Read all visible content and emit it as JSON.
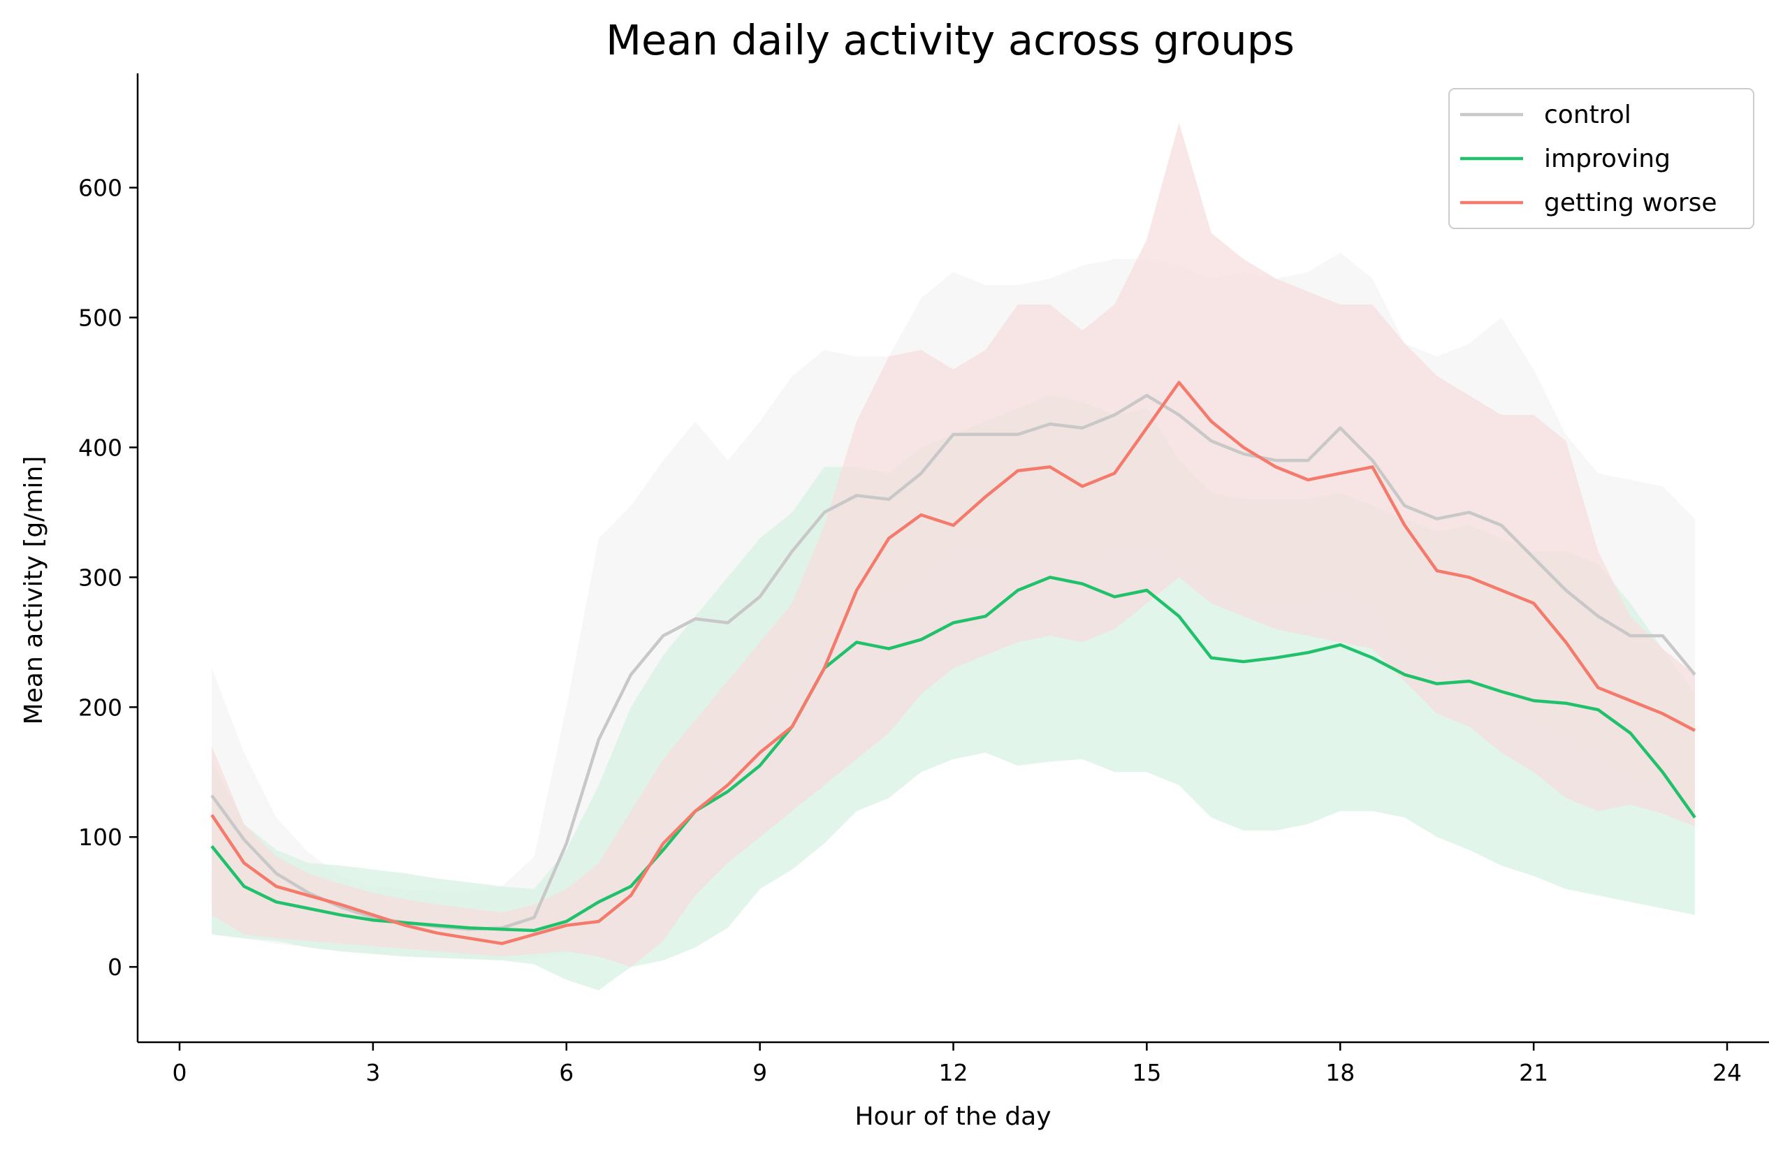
{
  "chart_data": {
    "type": "line",
    "title": "Mean daily activity across groups",
    "xlabel": "Hour of the day",
    "ylabel": "Mean activity [g/min]",
    "xlim": [
      -0.65,
      24.65
    ],
    "ylim": [
      -58,
      688
    ],
    "xticks": [
      0,
      3,
      6,
      9,
      12,
      15,
      18,
      21,
      24
    ],
    "yticks": [
      0,
      100,
      200,
      300,
      400,
      500,
      600
    ],
    "grid": false,
    "legend_position": "top-right",
    "x": [
      0.5,
      1,
      1.5,
      2,
      2.5,
      3,
      3.5,
      4,
      4.5,
      5,
      5.5,
      6,
      6.5,
      7,
      7.5,
      8,
      8.5,
      9,
      9.5,
      10,
      10.5,
      11,
      11.5,
      12,
      12.5,
      13,
      13.5,
      14,
      14.5,
      15,
      15.5,
      16,
      16.5,
      17,
      17.5,
      18,
      18.5,
      19,
      19.5,
      20,
      20.5,
      21,
      21.5,
      22,
      22.5,
      23,
      23.5
    ],
    "series": [
      {
        "name": "control",
        "color": "#c8c8c8",
        "band_color": "#f4f4f4",
        "mean": [
          132,
          98,
          72,
          57,
          46,
          38,
          34,
          31,
          29,
          30,
          38,
          95,
          175,
          225,
          255,
          268,
          265,
          285,
          320,
          350,
          363,
          360,
          380,
          410,
          410,
          410,
          418,
          415,
          425,
          440,
          425,
          405,
          395,
          390,
          390,
          415,
          390,
          355,
          345,
          350,
          340,
          315,
          290,
          270,
          255,
          255,
          225
        ],
        "upper": [
          230,
          165,
          115,
          88,
          70,
          62,
          60,
          58,
          58,
          62,
          85,
          200,
          330,
          355,
          390,
          420,
          390,
          420,
          455,
          475,
          470,
          470,
          515,
          535,
          525,
          525,
          530,
          540,
          545,
          545,
          540,
          530,
          535,
          530,
          535,
          550,
          530,
          480,
          470,
          480,
          500,
          460,
          410,
          380,
          375,
          370,
          345
        ],
        "lower": [
          25,
          22,
          18,
          15,
          12,
          10,
          8,
          7,
          6,
          5,
          6,
          10,
          25,
          70,
          110,
          140,
          160,
          180,
          220,
          260,
          275,
          285,
          300,
          320,
          320,
          310,
          315,
          315,
          320,
          325,
          310,
          290,
          280,
          275,
          280,
          290,
          275,
          245,
          230,
          225,
          205,
          190,
          175,
          165,
          145,
          140,
          120
        ]
      },
      {
        "name": "improving",
        "color": "#21c16b",
        "band_color": "#d6f1e3",
        "mean": [
          93,
          62,
          50,
          45,
          40,
          36,
          34,
          32,
          30,
          29,
          28,
          35,
          50,
          62,
          90,
          120,
          135,
          155,
          185,
          230,
          250,
          245,
          252,
          265,
          270,
          290,
          300,
          295,
          285,
          290,
          270,
          238,
          235,
          238,
          242,
          248,
          238,
          225,
          218,
          220,
          212,
          205,
          203,
          198,
          180,
          150,
          115
        ],
        "upper": [
          160,
          110,
          90,
          80,
          78,
          75,
          72,
          68,
          65,
          62,
          60,
          90,
          140,
          200,
          240,
          270,
          300,
          330,
          350,
          385,
          385,
          380,
          400,
          410,
          420,
          430,
          440,
          435,
          425,
          430,
          390,
          365,
          360,
          360,
          360,
          365,
          355,
          345,
          335,
          340,
          330,
          320,
          320,
          310,
          280,
          245,
          210
        ],
        "lower": [
          25,
          22,
          20,
          15,
          12,
          10,
          8,
          7,
          6,
          5,
          2,
          -10,
          -18,
          0,
          5,
          15,
          30,
          60,
          75,
          95,
          120,
          130,
          150,
          160,
          165,
          155,
          158,
          160,
          150,
          150,
          140,
          115,
          105,
          105,
          110,
          120,
          120,
          115,
          100,
          90,
          78,
          70,
          60,
          55,
          50,
          45,
          40
        ]
      },
      {
        "name": "getting worse",
        "color": "#f47a6c",
        "band_color": "#f7dcdc",
        "mean": [
          117,
          80,
          62,
          55,
          48,
          40,
          32,
          26,
          22,
          18,
          25,
          32,
          35,
          55,
          95,
          120,
          140,
          165,
          185,
          230,
          290,
          330,
          348,
          340,
          362,
          382,
          385,
          370,
          380,
          415,
          450,
          420,
          400,
          385,
          375,
          380,
          385,
          340,
          305,
          300,
          290,
          280,
          250,
          215,
          205,
          195,
          182
        ],
        "upper": [
          170,
          110,
          85,
          72,
          64,
          57,
          52,
          48,
          45,
          42,
          48,
          60,
          80,
          120,
          160,
          190,
          220,
          250,
          280,
          340,
          420,
          470,
          475,
          460,
          475,
          510,
          510,
          490,
          510,
          560,
          650,
          565,
          545,
          530,
          520,
          510,
          510,
          480,
          455,
          440,
          425,
          425,
          405,
          320,
          270,
          245,
          225
        ],
        "lower": [
          40,
          25,
          22,
          20,
          18,
          16,
          14,
          12,
          10,
          8,
          10,
          12,
          8,
          0,
          20,
          55,
          80,
          100,
          120,
          140,
          160,
          180,
          210,
          230,
          240,
          250,
          255,
          250,
          260,
          280,
          300,
          280,
          270,
          260,
          255,
          250,
          245,
          220,
          195,
          185,
          165,
          150,
          130,
          120,
          125,
          118,
          108
        ]
      }
    ]
  }
}
